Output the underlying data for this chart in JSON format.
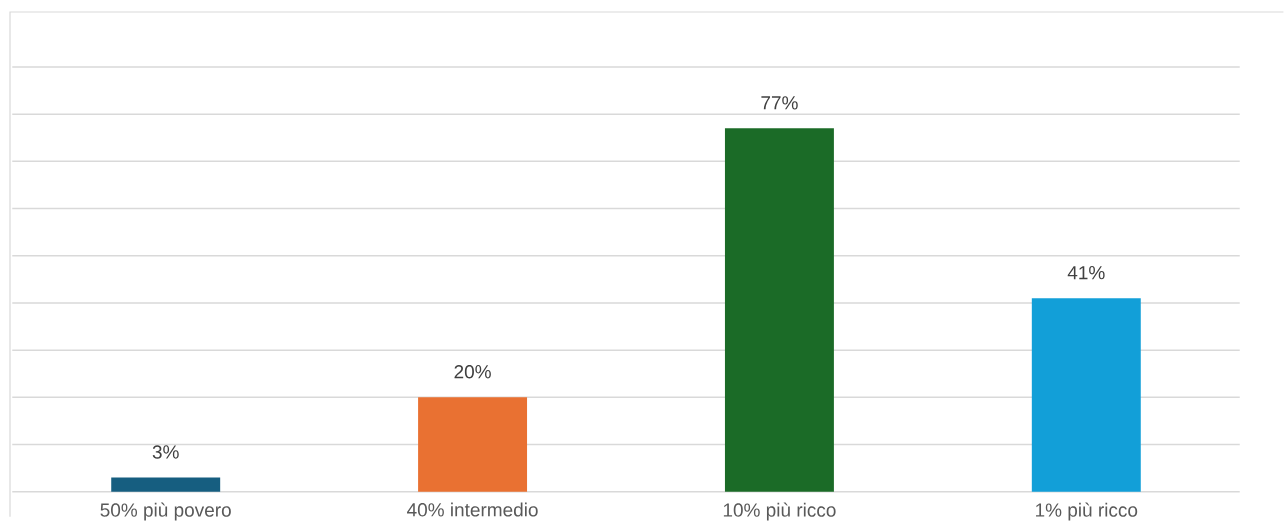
{
  "chart_data": {
    "type": "bar",
    "categories": [
      "50% più povero",
      "40% intermedio",
      "10% più ricco",
      "1% più ricco"
    ],
    "values": [
      3,
      20,
      77,
      41
    ],
    "colors": [
      "#165e80",
      "#e97132",
      "#1b6b27",
      "#129fd8"
    ],
    "value_labels": [
      "3%",
      "20%",
      "77%",
      "41%"
    ],
    "ylim": [
      0,
      90
    ],
    "yticks": [
      {
        "value": 0,
        "label": null
      },
      {
        "value": 10,
        "label": null
      },
      {
        "value": 20,
        "label": null
      },
      {
        "value": 30,
        "label": null
      },
      {
        "value": 40,
        "label": null
      },
      {
        "value": 50,
        "label": null
      },
      {
        "value": 60,
        "label": null
      },
      {
        "value": 70,
        "label": null
      },
      {
        "value": 80,
        "label": null
      },
      {
        "value": 90,
        "label": null
      }
    ],
    "grid": "y",
    "tick_labels": "x"
  }
}
